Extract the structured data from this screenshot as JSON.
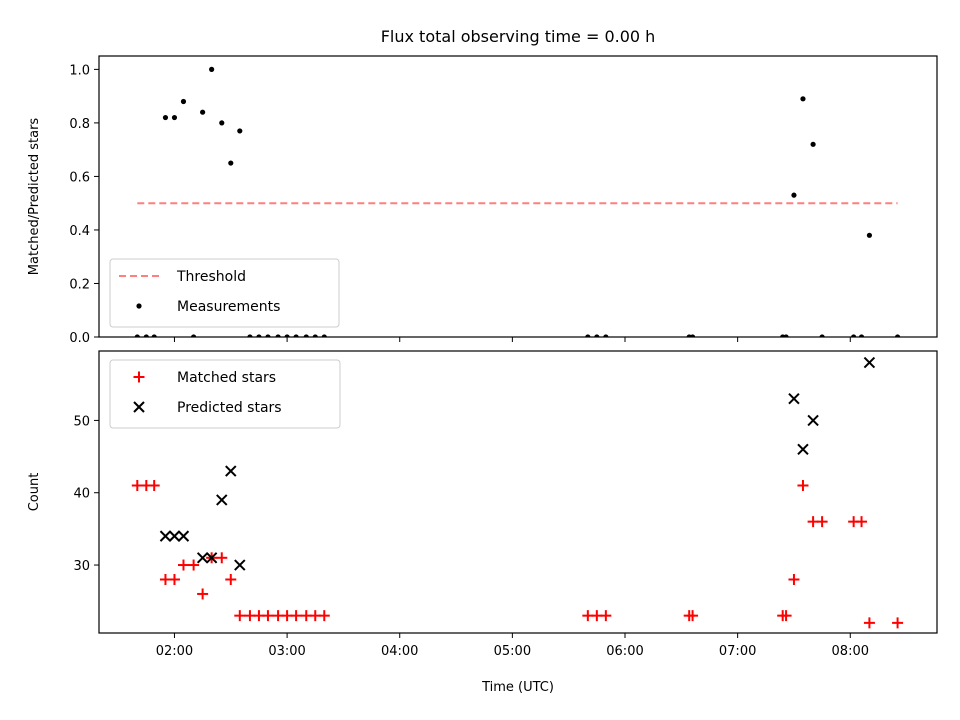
{
  "chart_data": {
    "type": "scatter",
    "title": "Flux total observing time = 0.00 h",
    "xlabel": "Time (UTC)",
    "xlim_hours": [
      1.33,
      8.77
    ],
    "xticks": [
      {
        "hour": 2,
        "label": "02:00"
      },
      {
        "hour": 3,
        "label": "03:00"
      },
      {
        "hour": 4,
        "label": "04:00"
      },
      {
        "hour": 5,
        "label": "05:00"
      },
      {
        "hour": 6,
        "label": "06:00"
      },
      {
        "hour": 7,
        "label": "07:00"
      },
      {
        "hour": 8,
        "label": "08:00"
      }
    ],
    "panels": [
      {
        "name": "ratio",
        "ylabel": "Matched/Predicted stars",
        "ylim": [
          0,
          1.05
        ],
        "yticks": [
          {
            "value": 0,
            "label": "0.0"
          },
          {
            "value": 0.2,
            "label": "0.2"
          },
          {
            "value": 0.4,
            "label": "0.4"
          },
          {
            "value": 0.6,
            "label": "0.6"
          },
          {
            "value": 0.8,
            "label": "0.8"
          },
          {
            "value": 1.0,
            "label": "1.0"
          }
        ],
        "legend": {
          "position": "lower-left",
          "entries": [
            {
              "name": "Threshold",
              "marker": "dashed-line",
              "color": "#ff7f7f"
            },
            {
              "name": "Measurements",
              "marker": "dot",
              "color": "#000000"
            }
          ]
        },
        "threshold": {
          "name": "Threshold",
          "value": 0.5,
          "x_from": 1.67,
          "x_to": 8.42,
          "color": "#ff7f7f"
        },
        "series": [
          {
            "name": "Measurements",
            "color": "#000000",
            "points": [
              [
                1.67,
                0
              ],
              [
                1.75,
                0
              ],
              [
                1.82,
                0
              ],
              [
                1.92,
                0.82
              ],
              [
                2.0,
                0.82
              ],
              [
                2.08,
                0.88
              ],
              [
                2.17,
                0
              ],
              [
                2.25,
                0.84
              ],
              [
                2.33,
                1.0
              ],
              [
                2.42,
                0.8
              ],
              [
                2.5,
                0.65
              ],
              [
                2.58,
                0.77
              ],
              [
                2.67,
                0
              ],
              [
                2.75,
                0
              ],
              [
                2.83,
                0
              ],
              [
                2.92,
                0
              ],
              [
                3.0,
                0
              ],
              [
                3.08,
                0
              ],
              [
                3.17,
                0
              ],
              [
                3.25,
                0
              ],
              [
                3.33,
                0
              ],
              [
                5.67,
                0
              ],
              [
                5.75,
                0
              ],
              [
                5.83,
                0
              ],
              [
                6.57,
                0
              ],
              [
                6.6,
                0
              ],
              [
                7.4,
                0
              ],
              [
                7.43,
                0
              ],
              [
                7.5,
                0.53
              ],
              [
                7.58,
                0.89
              ],
              [
                7.67,
                0.72
              ],
              [
                7.75,
                0
              ],
              [
                8.03,
                0
              ],
              [
                8.1,
                0
              ],
              [
                8.17,
                0.38
              ],
              [
                8.42,
                0
              ]
            ]
          }
        ]
      },
      {
        "name": "count",
        "ylabel": "Count",
        "ylim": [
          20.6,
          59.6
        ],
        "yticks": [
          {
            "value": 30,
            "label": "30"
          },
          {
            "value": 40,
            "label": "40"
          },
          {
            "value": 50,
            "label": "50"
          }
        ],
        "legend": {
          "position": "upper-left",
          "entries": [
            {
              "name": "Matched stars",
              "marker": "plus",
              "color": "#ff0000"
            },
            {
              "name": "Predicted stars",
              "marker": "x",
              "color": "#000000"
            }
          ]
        },
        "series": [
          {
            "name": "Matched stars",
            "marker": "plus",
            "color": "#ff0000",
            "points": [
              [
                1.67,
                41
              ],
              [
                1.75,
                41
              ],
              [
                1.82,
                41
              ],
              [
                1.92,
                28
              ],
              [
                2.0,
                28
              ],
              [
                2.08,
                30
              ],
              [
                2.17,
                30
              ],
              [
                2.25,
                26
              ],
              [
                2.33,
                31
              ],
              [
                2.42,
                31
              ],
              [
                2.5,
                28
              ],
              [
                2.58,
                23
              ],
              [
                2.67,
                23
              ],
              [
                2.75,
                23
              ],
              [
                2.83,
                23
              ],
              [
                2.92,
                23
              ],
              [
                3.0,
                23
              ],
              [
                3.08,
                23
              ],
              [
                3.17,
                23
              ],
              [
                3.25,
                23
              ],
              [
                3.33,
                23
              ],
              [
                5.67,
                23
              ],
              [
                5.75,
                23
              ],
              [
                5.83,
                23
              ],
              [
                6.57,
                23
              ],
              [
                6.6,
                23
              ],
              [
                7.4,
                23
              ],
              [
                7.43,
                23
              ],
              [
                7.5,
                28
              ],
              [
                7.58,
                41
              ],
              [
                7.67,
                36
              ],
              [
                7.75,
                36
              ],
              [
                8.03,
                36
              ],
              [
                8.1,
                36
              ],
              [
                8.17,
                22
              ],
              [
                8.42,
                22
              ]
            ]
          },
          {
            "name": "Predicted stars",
            "marker": "x",
            "color": "#000000",
            "points": [
              [
                1.92,
                34
              ],
              [
                2.0,
                34
              ],
              [
                2.08,
                34
              ],
              [
                2.25,
                31
              ],
              [
                2.33,
                31
              ],
              [
                2.42,
                39
              ],
              [
                2.5,
                43
              ],
              [
                2.58,
                30
              ],
              [
                7.5,
                53
              ],
              [
                7.58,
                46
              ],
              [
                7.67,
                50
              ],
              [
                8.17,
                58
              ]
            ]
          }
        ]
      }
    ]
  }
}
